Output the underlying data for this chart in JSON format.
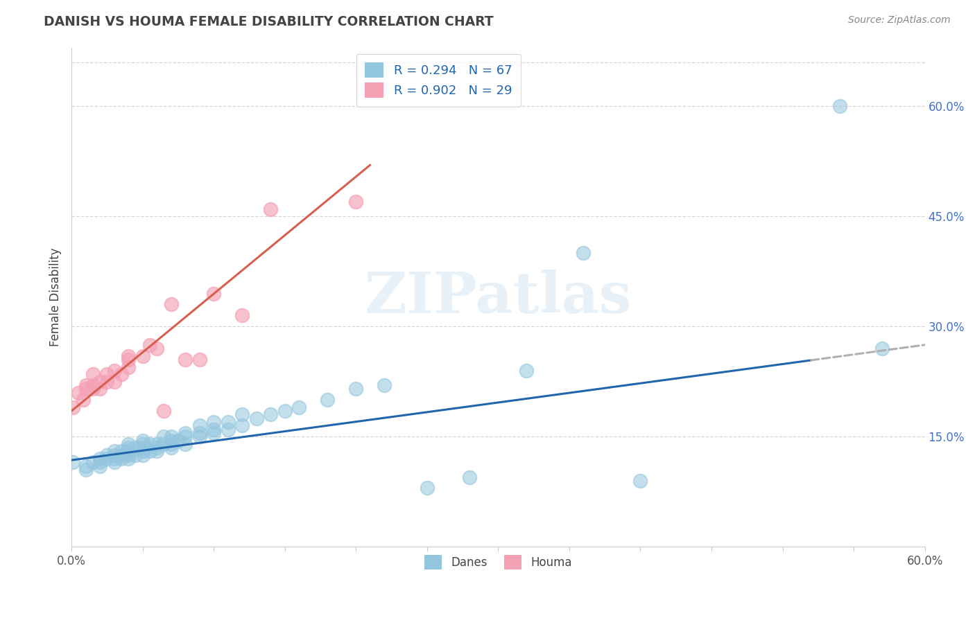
{
  "title": "DANISH VS HOUMA FEMALE DISABILITY CORRELATION CHART",
  "source": "Source: ZipAtlas.com",
  "ylabel": "Female Disability",
  "xlim": [
    0.0,
    0.6
  ],
  "ylim": [
    0.0,
    0.68
  ],
  "y_tick_positions_right": [
    0.15,
    0.3,
    0.45,
    0.6
  ],
  "y_tick_labels_right": [
    "15.0%",
    "30.0%",
    "45.0%",
    "60.0%"
  ],
  "danes_color": "#92c5de",
  "houma_color": "#f4a0b5",
  "danes_line_color": "#2166ac",
  "houma_line_color": "#d6604d",
  "danes_R": 0.294,
  "danes_N": 67,
  "houma_R": 0.902,
  "houma_N": 29,
  "danes_x": [
    0.001,
    0.01,
    0.01,
    0.015,
    0.02,
    0.02,
    0.02,
    0.025,
    0.025,
    0.03,
    0.03,
    0.03,
    0.03,
    0.035,
    0.035,
    0.035,
    0.04,
    0.04,
    0.04,
    0.04,
    0.04,
    0.045,
    0.045,
    0.05,
    0.05,
    0.05,
    0.05,
    0.05,
    0.055,
    0.055,
    0.06,
    0.06,
    0.06,
    0.065,
    0.065,
    0.07,
    0.07,
    0.07,
    0.07,
    0.075,
    0.08,
    0.08,
    0.08,
    0.09,
    0.09,
    0.09,
    0.1,
    0.1,
    0.1,
    0.11,
    0.11,
    0.12,
    0.12,
    0.13,
    0.14,
    0.15,
    0.16,
    0.18,
    0.2,
    0.22,
    0.25,
    0.28,
    0.32,
    0.36,
    0.4,
    0.54,
    0.57
  ],
  "danes_y": [
    0.115,
    0.105,
    0.11,
    0.115,
    0.11,
    0.115,
    0.12,
    0.12,
    0.125,
    0.115,
    0.12,
    0.125,
    0.13,
    0.12,
    0.125,
    0.13,
    0.12,
    0.125,
    0.13,
    0.135,
    0.14,
    0.125,
    0.135,
    0.125,
    0.13,
    0.135,
    0.14,
    0.145,
    0.13,
    0.14,
    0.13,
    0.135,
    0.14,
    0.14,
    0.15,
    0.135,
    0.14,
    0.145,
    0.15,
    0.145,
    0.14,
    0.15,
    0.155,
    0.15,
    0.155,
    0.165,
    0.155,
    0.16,
    0.17,
    0.16,
    0.17,
    0.165,
    0.18,
    0.175,
    0.18,
    0.185,
    0.19,
    0.2,
    0.215,
    0.22,
    0.08,
    0.095,
    0.24,
    0.4,
    0.09,
    0.6,
    0.27
  ],
  "houma_x": [
    0.001,
    0.005,
    0.008,
    0.01,
    0.01,
    0.015,
    0.015,
    0.015,
    0.02,
    0.02,
    0.025,
    0.025,
    0.03,
    0.03,
    0.035,
    0.04,
    0.04,
    0.04,
    0.05,
    0.055,
    0.06,
    0.065,
    0.07,
    0.08,
    0.09,
    0.1,
    0.12,
    0.14,
    0.2
  ],
  "houma_y": [
    0.19,
    0.21,
    0.2,
    0.22,
    0.215,
    0.215,
    0.22,
    0.235,
    0.215,
    0.225,
    0.225,
    0.235,
    0.225,
    0.24,
    0.235,
    0.245,
    0.255,
    0.26,
    0.26,
    0.275,
    0.27,
    0.185,
    0.33,
    0.255,
    0.255,
    0.345,
    0.315,
    0.46,
    0.47
  ],
  "watermark_text": "ZIPatlas",
  "background_color": "#ffffff",
  "grid_color": "#cccccc",
  "title_color": "#444444",
  "axis_label_color": "#444444",
  "danes_trend_x0": 0.0,
  "danes_trend_x1": 0.6,
  "danes_trend_y0": 0.118,
  "danes_trend_y1": 0.275,
  "danes_dash_split": 0.52,
  "houma_trend_x0": 0.0,
  "houma_trend_x1": 0.21,
  "houma_trend_y0": 0.185,
  "houma_trend_y1": 0.52
}
